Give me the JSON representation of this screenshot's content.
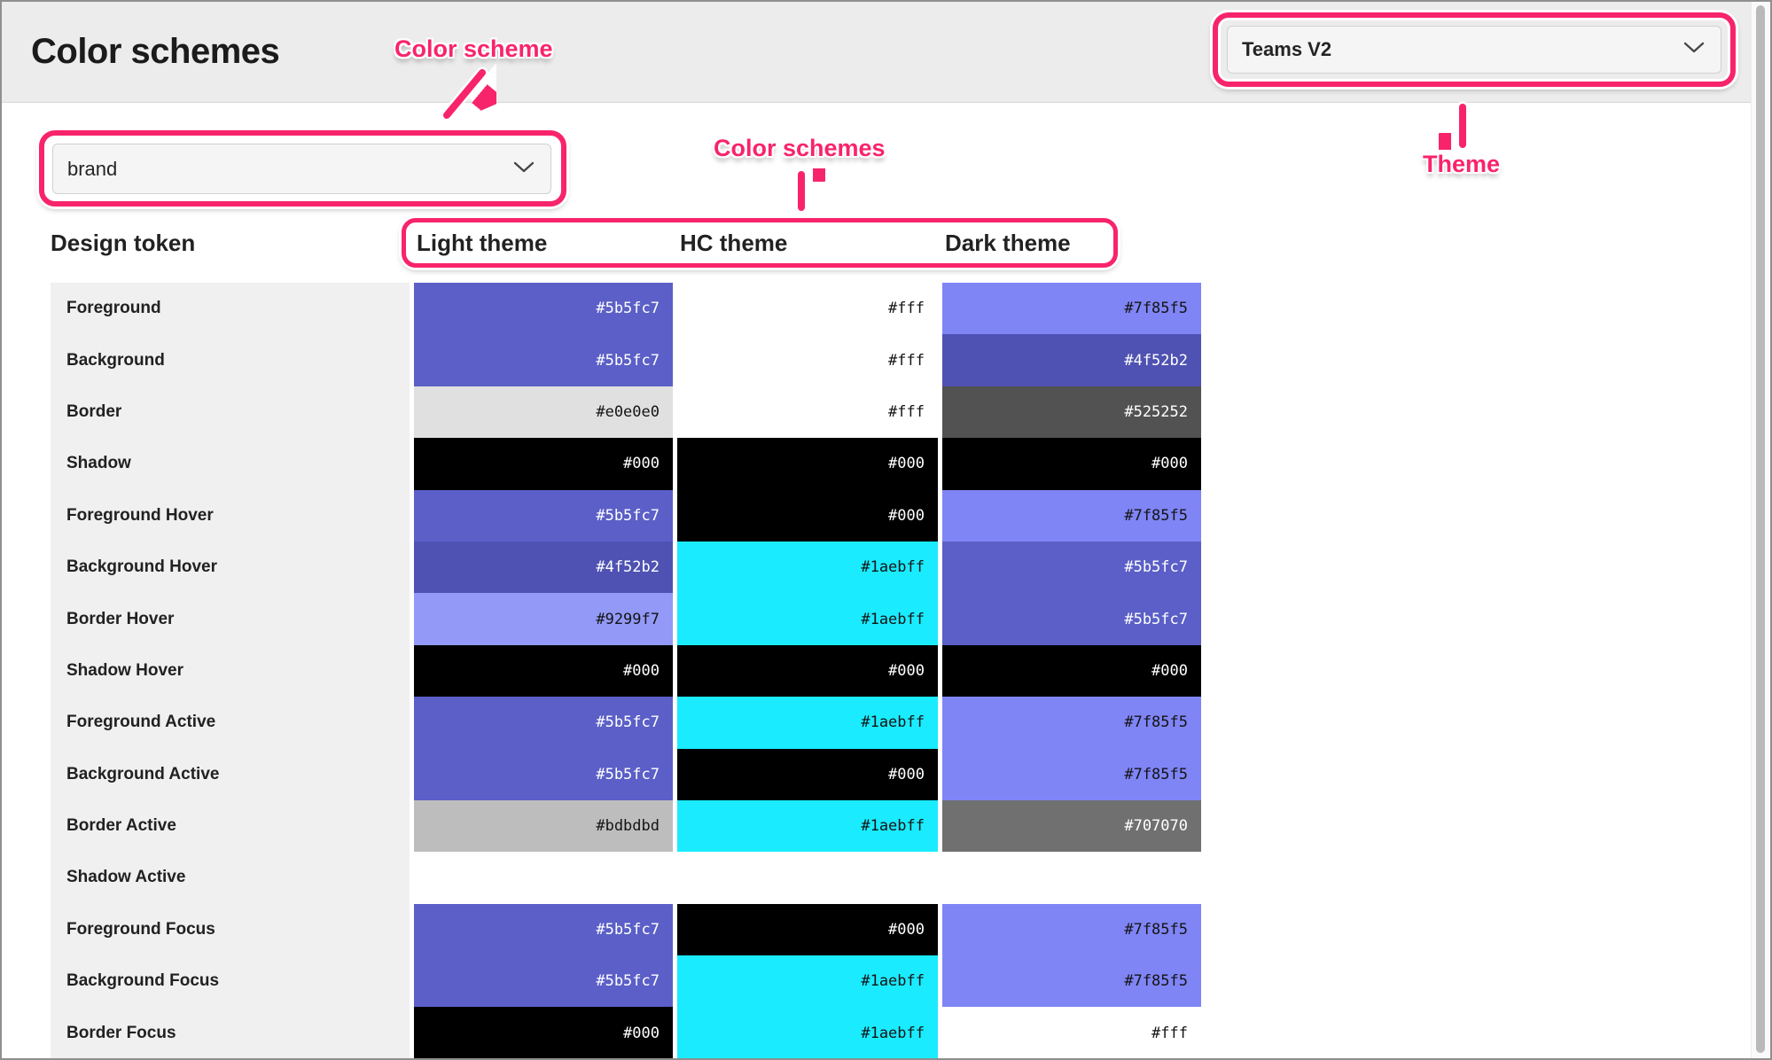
{
  "page_title": "Color schemes",
  "theme_dropdown": {
    "value": "Teams V2"
  },
  "scheme_dropdown": {
    "value": "brand"
  },
  "annotations": {
    "accent_color": "#f8246b",
    "scheme_label": "Color scheme",
    "schemes_label": "Color schemes",
    "theme_label": "Theme"
  },
  "table": {
    "token_header": "Design token",
    "theme_headers": [
      "Light theme",
      "HC theme",
      "Dark theme"
    ],
    "rows": [
      {
        "token": "Foreground",
        "light": "#5b5fc7",
        "hc": "#fff",
        "dark": "#7f85f5"
      },
      {
        "token": "Background",
        "light": "#5b5fc7",
        "hc": "#fff",
        "dark": "#4f52b2"
      },
      {
        "token": "Border",
        "light": "#e0e0e0",
        "hc": "#fff",
        "dark": "#525252"
      },
      {
        "token": "Shadow",
        "light": "#000",
        "hc": "#000",
        "dark": "#000"
      },
      {
        "token": "Foreground Hover",
        "light": "#5b5fc7",
        "hc": "#000",
        "dark": "#7f85f5"
      },
      {
        "token": "Background Hover",
        "light": "#4f52b2",
        "hc": "#1aebff",
        "dark": "#5b5fc7"
      },
      {
        "token": "Border Hover",
        "light": "#9299f7",
        "hc": "#1aebff",
        "dark": "#5b5fc7"
      },
      {
        "token": "Shadow Hover",
        "light": "#000",
        "hc": "#000",
        "dark": "#000"
      },
      {
        "token": "Foreground Active",
        "light": "#5b5fc7",
        "hc": "#1aebff",
        "dark": "#7f85f5"
      },
      {
        "token": "Background Active",
        "light": "#5b5fc7",
        "hc": "#000",
        "dark": "#7f85f5"
      },
      {
        "token": "Border Active",
        "light": "#bdbdbd",
        "hc": "#1aebff",
        "dark": "#707070"
      },
      {
        "token": "Shadow Active",
        "light": null,
        "hc": null,
        "dark": null
      },
      {
        "token": "Foreground Focus",
        "light": "#5b5fc7",
        "hc": "#000",
        "dark": "#7f85f5"
      },
      {
        "token": "Background Focus",
        "light": "#5b5fc7",
        "hc": "#1aebff",
        "dark": "#7f85f5"
      },
      {
        "token": "Border Focus",
        "light": "#000",
        "hc": "#1aebff",
        "dark": "#fff"
      }
    ]
  }
}
